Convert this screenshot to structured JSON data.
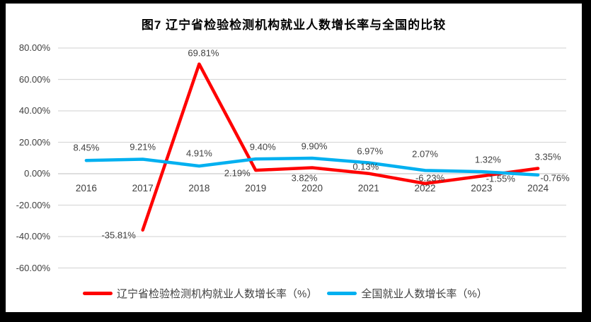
{
  "title": "图7 辽宁省检验检测机构就业人数增长率与全国的比较",
  "colors": {
    "frame": "#000000",
    "background": "#ffffff",
    "grid": "#d9d9d9",
    "axis": "#c9c9c9",
    "text": "#404040",
    "title_text": "#000000"
  },
  "chart_data": {
    "type": "line",
    "title": "图7 辽宁省检验检测机构就业人数增长率与全国的比较",
    "categories": [
      "2016",
      "2017",
      "2018",
      "2019",
      "2020",
      "2021",
      "2022",
      "2023",
      "2024"
    ],
    "series": [
      {
        "name": "辽宁省检验检测机构就业人数增长率（%）",
        "color": "#ff0000",
        "values": [
          null,
          -35.81,
          69.81,
          2.19,
          3.82,
          0.13,
          -6.23,
          -1.55,
          3.35
        ],
        "labels": [
          null,
          "-35.81%",
          "69.81%",
          "2.19%",
          "3.82%",
          "0.13%",
          "-6.23%",
          "-1.55%",
          "3.35%"
        ],
        "label_offsets": [
          null,
          [
            -34,
            7
          ],
          [
            6,
            -16
          ],
          [
            -26,
            4
          ],
          [
            -11,
            14
          ],
          [
            -4,
            -10
          ],
          [
            7,
            -8
          ],
          [
            27,
            4
          ],
          [
            14,
            -17
          ]
        ]
      },
      {
        "name": "全国就业人数增长率（%）",
        "color": "#00b0f0",
        "values": [
          8.45,
          9.21,
          4.91,
          9.4,
          9.9,
          6.97,
          2.07,
          1.32,
          -0.76
        ],
        "labels": [
          "8.45%",
          "9.21%",
          "4.91%",
          "9.40%",
          "9.90%",
          "6.97%",
          "2.07%",
          "1.32%",
          "-0.76%"
        ],
        "label_offsets": [
          [
            0,
            -18
          ],
          [
            0,
            -18
          ],
          [
            0,
            -18
          ],
          [
            10,
            -17
          ],
          [
            3,
            -17
          ],
          [
            2,
            -16
          ],
          [
            0,
            -23
          ],
          [
            9,
            -17
          ],
          [
            24,
            4
          ]
        ]
      }
    ],
    "y_axis": {
      "min": -60,
      "max": 80,
      "step": 20,
      "tick_labels": [
        "80.00%",
        "60.00%",
        "40.00%",
        "20.00%",
        "0.00%",
        "-20.00%",
        "-40.00%",
        "-60.00%"
      ]
    },
    "grid": true,
    "legend_position": "bottom"
  }
}
